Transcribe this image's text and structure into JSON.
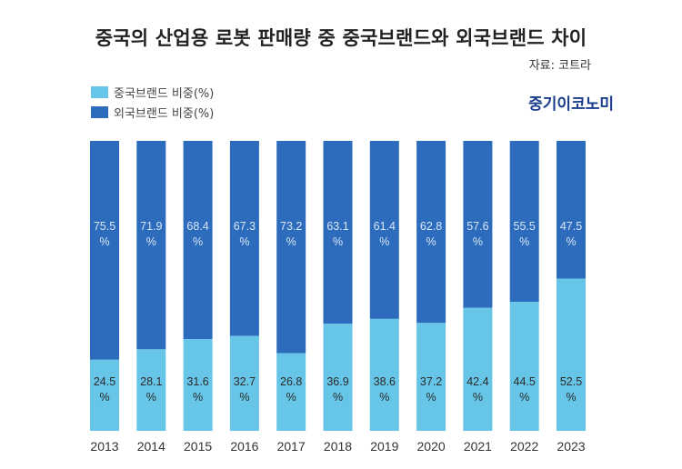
{
  "title": "중국의 산업용 로봇 판매량 중 중국브랜드와 외국브랜드 차이",
  "source": "자료: 코트라",
  "brand": "중기이코노미",
  "colors": {
    "domestic": "#67c6e8",
    "foreign": "#2d6cbd",
    "label_on_domestic": "#2a2a2a",
    "label_on_foreign": "#d8e6f6"
  },
  "chart_data": {
    "type": "bar",
    "stacked": true,
    "percent_stacked": true,
    "title": "중국의 산업용 로봇 판매량 중 중국브랜드와 외국브랜드 차이",
    "xlabel": "",
    "ylabel": "",
    "ylim": [
      0,
      100
    ],
    "grid": false,
    "legend_position": "top-left",
    "categories": [
      "2013",
      "2014",
      "2015",
      "2016",
      "2017",
      "2018",
      "2019",
      "2020",
      "2021",
      "2022",
      "2023"
    ],
    "series": [
      {
        "name": "중국브랜드 비중(%)",
        "values": [
          24.5,
          28.1,
          31.6,
          32.7,
          26.8,
          36.9,
          38.6,
          37.2,
          42.4,
          44.5,
          52.5
        ]
      },
      {
        "name": "외국브랜드 비중(%)",
        "values": [
          75.5,
          71.9,
          68.4,
          67.3,
          73.2,
          63.1,
          61.4,
          62.8,
          57.6,
          55.5,
          47.5
        ]
      }
    ],
    "unit": "%"
  }
}
